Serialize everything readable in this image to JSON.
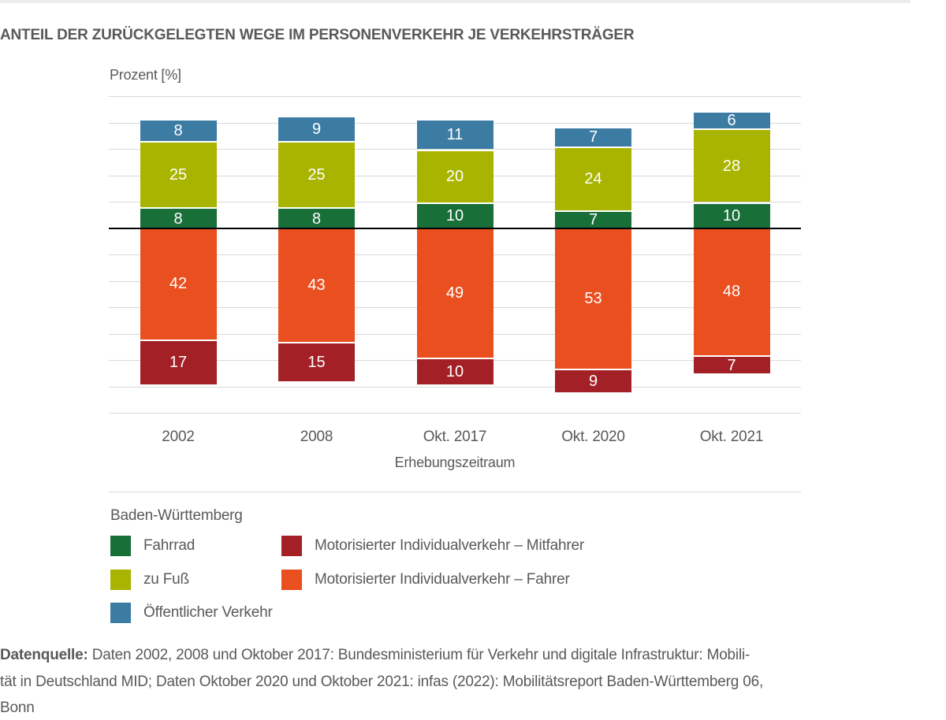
{
  "header": {
    "title": "ANTEIL DER ZURÜCKGELEGTEN WEGE IM PERSONENVERKEHR JE VERKEHRSTRÄGER"
  },
  "axis": {
    "y_label": "Prozent [%]",
    "x_label": "Erhebungszeitraum"
  },
  "chart_data": {
    "type": "bar",
    "subtype": "diverging-stacked",
    "title": "ANTEIL DER ZURÜCKGELEGTEN WEGE IM PERSONENVERKEHR JE VERKEHRSTRÄGER",
    "ylabel": "Prozent [%]",
    "xlabel": "Erhebungszeitraum",
    "categories": [
      "2002",
      "2008",
      "Okt. 2017",
      "Okt. 2020",
      "Okt. 2021"
    ],
    "series_above_baseline": [
      {
        "name": "Fahrrad",
        "color": "#186f38",
        "values": [
          8,
          8,
          10,
          7,
          10
        ]
      },
      {
        "name": "zu Fuß",
        "color": "#a9b400",
        "values": [
          25,
          25,
          20,
          24,
          28
        ]
      },
      {
        "name": "Öffentlicher Verkehr",
        "color": "#3c7ca3",
        "values": [
          8,
          9,
          11,
          7,
          6
        ]
      }
    ],
    "series_below_baseline": [
      {
        "name": "Motorisierter Individualverkehr – Fahrer",
        "color": "#e94f1f",
        "values": [
          42,
          43,
          49,
          53,
          48
        ]
      },
      {
        "name": "Motorisierter Individualverkehr – Mitfahrer",
        "color": "#a32126",
        "values": [
          17,
          15,
          10,
          9,
          7
        ]
      }
    ],
    "baseline": 0,
    "ylim": [
      -70,
      50
    ],
    "grid_step": 10,
    "grid": true,
    "legend_position": "bottom-left",
    "value_labels": "white, centered in each segment"
  },
  "legend": {
    "title": "Baden-Württemberg",
    "column1": [
      {
        "label": "Fahrrad",
        "color": "#186f38"
      },
      {
        "label": "zu Fuß",
        "color": "#a9b400"
      },
      {
        "label": "Öffentlicher Verkehr",
        "color": "#3c7ca3"
      }
    ],
    "column2": [
      {
        "label": "Motorisierter Individualverkehr – Mitfahrer",
        "color": "#a32126"
      },
      {
        "label": "Motorisierter Individualverkehr – Fahrer",
        "color": "#e94f1f"
      }
    ]
  },
  "source": {
    "label": "Datenquelle:",
    "line1_rest": " Daten 2002, 2008 und Oktober 2017: Bundesministerium für Verkehr und digitale Infrastruktur: Mobili-",
    "line2": "tät in Deutschland MID; Daten Oktober 2020 und Oktober 2021: infas (2022): Mobilitätsreport Baden-Württemberg 06,",
    "line3": "Bonn"
  },
  "colors": {
    "grid": "#d9d9d9",
    "zero_line": "#000000",
    "text": "#595959",
    "value_text": "#ffffff",
    "top_strip": "#ededed"
  }
}
